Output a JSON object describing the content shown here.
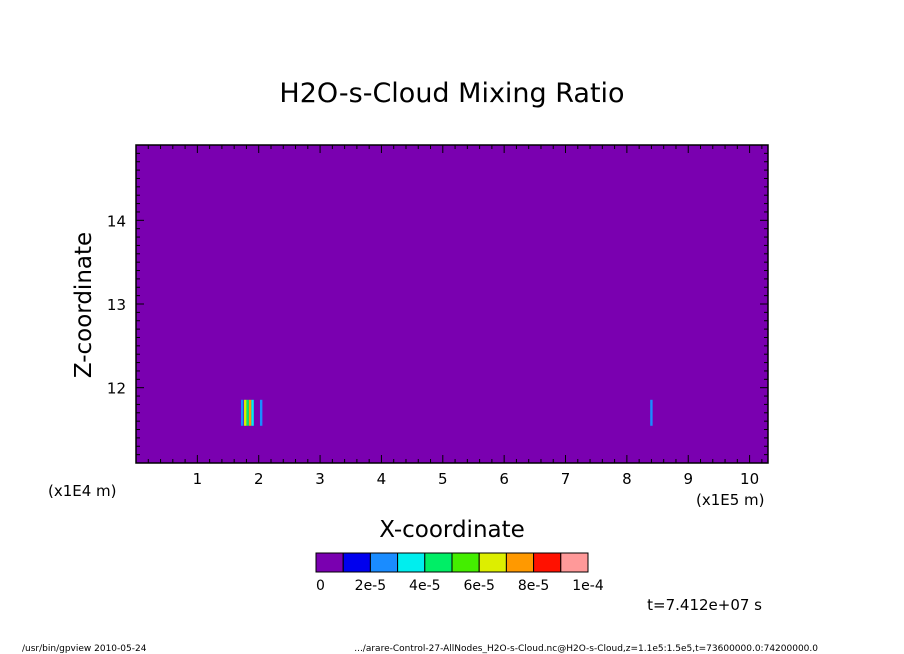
{
  "chart_data": {
    "type": "heatmap",
    "title": "H2O-s-Cloud Mixing Ratio",
    "xlabel": "X-coordinate",
    "ylabel": "Z-coordinate",
    "x_unit_left": "(x1E4 m)",
    "x_unit_right": "(x1E5 m)",
    "xlim": [
      0,
      10.3
    ],
    "ylim": [
      11.1,
      14.9
    ],
    "x_ticks": [
      1,
      2,
      3,
      4,
      5,
      6,
      7,
      8,
      9,
      10
    ],
    "y_ticks": [
      12,
      13,
      14
    ],
    "background_value": 0,
    "colorbar": {
      "colors": [
        "#7a00b0",
        "#0000ee",
        "#1a8cff",
        "#00eeee",
        "#00ee66",
        "#44ee00",
        "#ddee00",
        "#ff9900",
        "#ff1100",
        "#ff9999"
      ],
      "labels": [
        "0",
        "2e-5",
        "4e-5",
        "6e-5",
        "8e-5",
        "1e-4"
      ]
    },
    "features": [
      {
        "x": 1.73,
        "z": 11.7,
        "color": "#1a8cff"
      },
      {
        "x": 1.78,
        "z": 11.7,
        "color": "#ddee00"
      },
      {
        "x": 1.82,
        "z": 11.7,
        "color": "#00ee66"
      },
      {
        "x": 1.86,
        "z": 11.7,
        "color": "#ff9900"
      },
      {
        "x": 1.9,
        "z": 11.7,
        "color": "#00eeee"
      },
      {
        "x": 2.04,
        "z": 11.7,
        "color": "#1a8cff"
      },
      {
        "x": 8.4,
        "z": 11.7,
        "color": "#1a8cff"
      }
    ],
    "time_label": "t=7.412e+07 s"
  },
  "footer": {
    "left": "/usr/bin/gpview   2010-05-24",
    "right": ".../arare-Control-27-AllNodes_H2O-s-Cloud.nc@H2O-s-Cloud,z=1.1e5:1.5e5,t=73600000.0:74200000.0"
  }
}
